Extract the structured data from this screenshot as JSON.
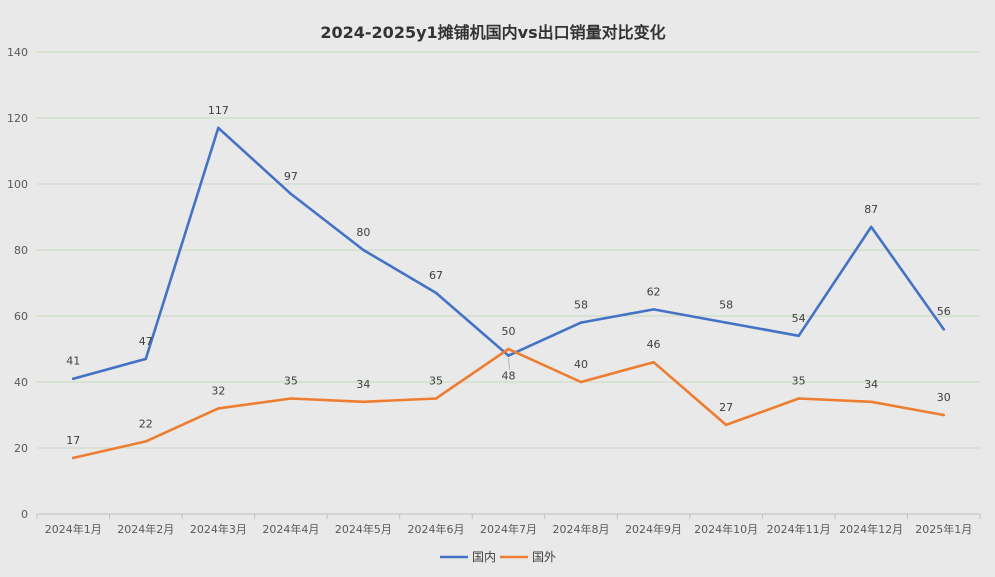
{
  "chart_data": {
    "type": "line",
    "title": "2024-2025y1摊铺机国内vs出口销量对比变化",
    "categories": [
      "2024年1月",
      "2024年2月",
      "2024年3月",
      "2024年4月",
      "2024年5月",
      "2024年6月",
      "2024年7月",
      "2024年8月",
      "2024年9月",
      "2024年10月",
      "2024年11月",
      "2024年12月",
      "2025年1月"
    ],
    "series": [
      {
        "name": "国内",
        "color": "#4472c4",
        "values": [
          41,
          47,
          117,
          97,
          80,
          67,
          48,
          58,
          62,
          58,
          54,
          87,
          56
        ]
      },
      {
        "name": "国外",
        "color": "#ed7d31",
        "values": [
          17,
          22,
          32,
          35,
          34,
          35,
          50,
          40,
          46,
          27,
          35,
          34,
          30
        ]
      }
    ],
    "ylim": [
      0,
      140
    ],
    "yticks": [
      0,
      20,
      40,
      60,
      80,
      100,
      120,
      140
    ],
    "grid": true,
    "legend_position": "bottom"
  }
}
